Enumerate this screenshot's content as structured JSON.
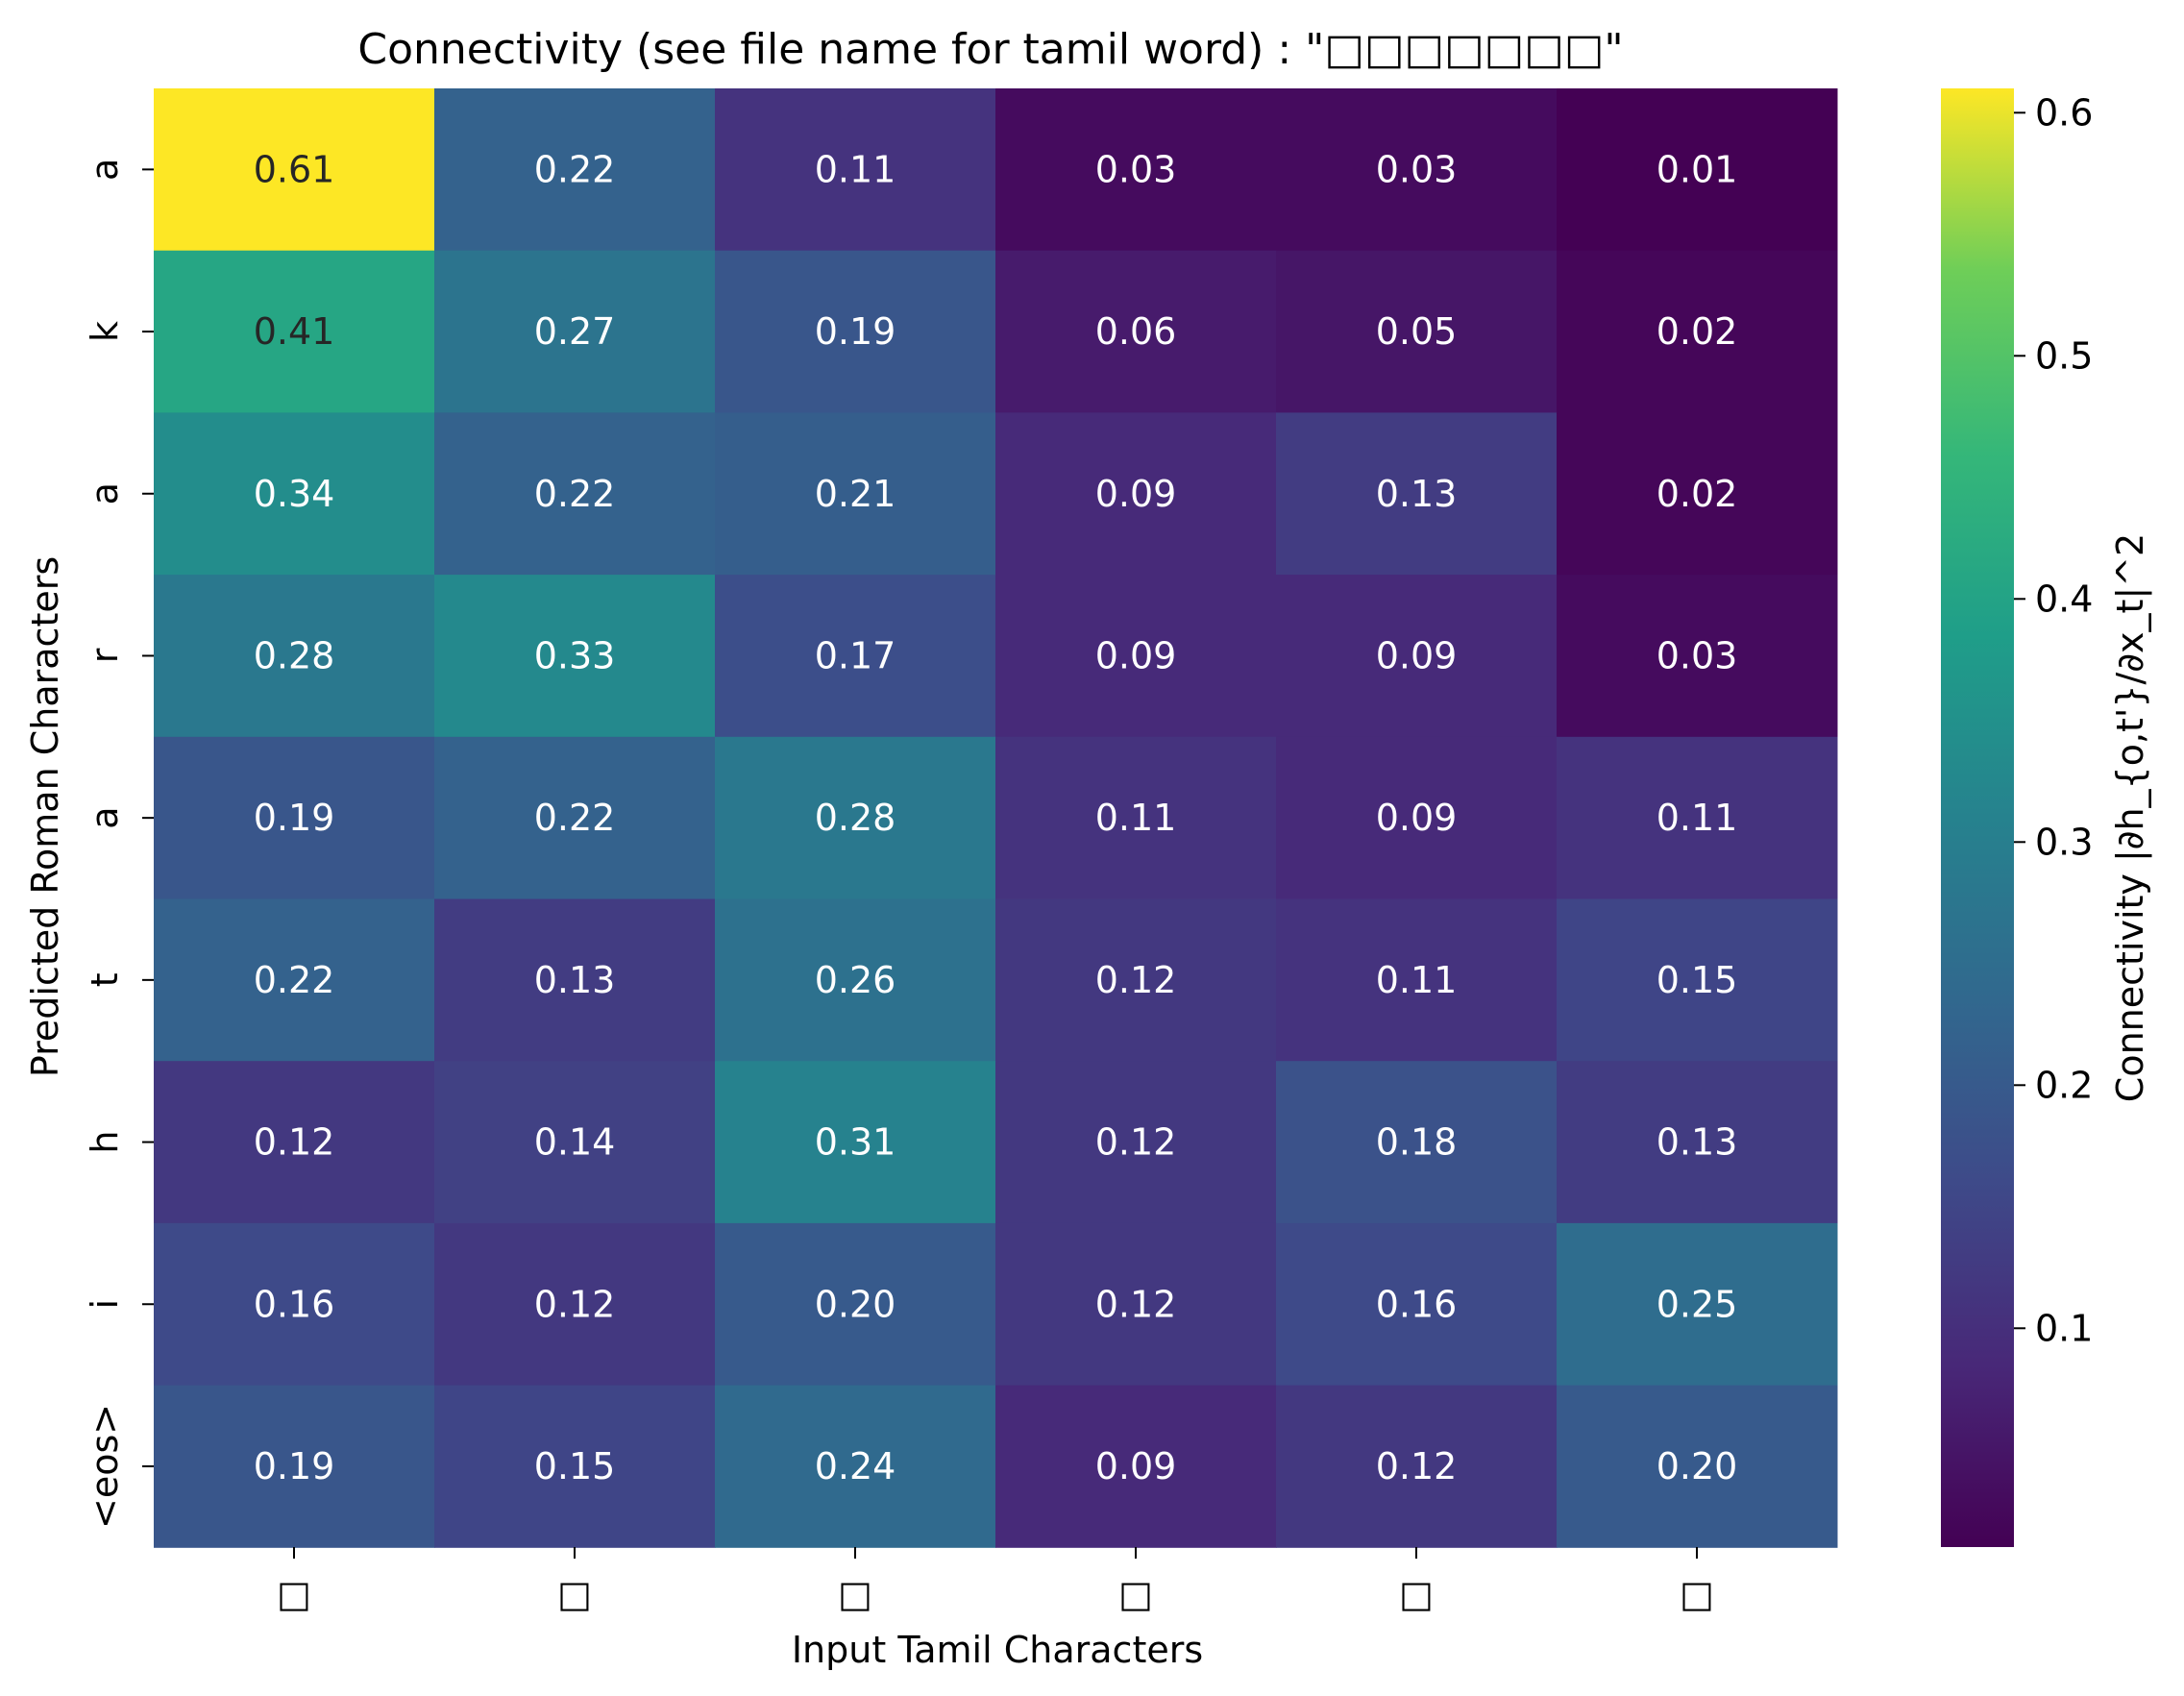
{
  "chart_data": {
    "type": "heatmap",
    "title": "Connectivity (see file name for tamil word) : \"□□□□□□□\"",
    "xlabel": "Input Tamil Characters",
    "ylabel": "Predicted Roman Characters",
    "x_categories": [
      "□",
      "□",
      "□",
      "□",
      "□",
      "□"
    ],
    "y_categories": [
      "a",
      "k",
      "a",
      "r",
      "a",
      "t",
      "h",
      "i",
      "<eos>"
    ],
    "values": [
      [
        0.61,
        0.22,
        0.11,
        0.03,
        0.03,
        0.01
      ],
      [
        0.41,
        0.27,
        0.19,
        0.06,
        0.05,
        0.02
      ],
      [
        0.34,
        0.22,
        0.21,
        0.09,
        0.13,
        0.02
      ],
      [
        0.28,
        0.33,
        0.17,
        0.09,
        0.09,
        0.03
      ],
      [
        0.19,
        0.22,
        0.28,
        0.11,
        0.09,
        0.11
      ],
      [
        0.22,
        0.13,
        0.26,
        0.12,
        0.11,
        0.15
      ],
      [
        0.12,
        0.14,
        0.31,
        0.12,
        0.18,
        0.13
      ],
      [
        0.16,
        0.12,
        0.2,
        0.12,
        0.16,
        0.25
      ],
      [
        0.19,
        0.15,
        0.24,
        0.09,
        0.12,
        0.2
      ]
    ],
    "value_labels": [
      [
        "0.61",
        "0.22",
        "0.11",
        "0.03",
        "0.03",
        "0.01"
      ],
      [
        "0.41",
        "0.27",
        "0.19",
        "0.06",
        "0.05",
        "0.02"
      ],
      [
        "0.34",
        "0.22",
        "0.21",
        "0.09",
        "0.13",
        "0.02"
      ],
      [
        "0.28",
        "0.33",
        "0.17",
        "0.09",
        "0.09",
        "0.03"
      ],
      [
        "0.19",
        "0.22",
        "0.28",
        "0.11",
        "0.09",
        "0.11"
      ],
      [
        "0.22",
        "0.13",
        "0.26",
        "0.12",
        "0.11",
        "0.15"
      ],
      [
        "0.12",
        "0.14",
        "0.31",
        "0.12",
        "0.18",
        "0.13"
      ],
      [
        "0.16",
        "0.12",
        "0.20",
        "0.12",
        "0.16",
        "0.25"
      ],
      [
        "0.19",
        "0.15",
        "0.24",
        "0.09",
        "0.12",
        "0.20"
      ]
    ],
    "colormap": "viridis",
    "colorbar": {
      "label": "Connectivity |∂h_{o,t'}/∂x_t|^2",
      "range": [
        0.01,
        0.61
      ],
      "ticks": [
        0.1,
        0.2,
        0.3,
        0.4,
        0.5,
        0.6
      ],
      "tick_labels": [
        "0.1",
        "0.2",
        "0.3",
        "0.4",
        "0.5",
        "0.6"
      ]
    },
    "grid": false,
    "legend": "none"
  }
}
